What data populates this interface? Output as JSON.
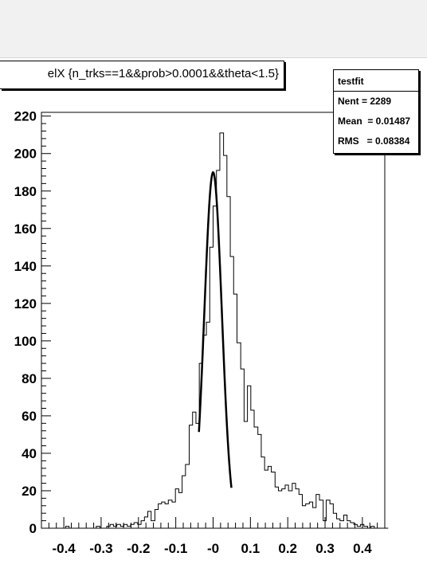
{
  "title": "elX {n_trks==1&&prob>0.0001&&theta<1.5}",
  "stats": {
    "name": "testfit",
    "entries_label": "Nent = 2289",
    "mean_label": "Mean  = 0.01487",
    "rms_label": "RMS   = 0.08384"
  },
  "colors": {
    "histogram": "#000000",
    "fit": "#000000",
    "background": "#ffffff",
    "top_band": "#f1f1f1"
  },
  "chart_data": {
    "type": "histogram",
    "title": "elX {n_trks==1&&prob>0.0001&&theta<1.5}",
    "xlabel": "",
    "ylabel": "",
    "xlim": [
      -0.46,
      0.46
    ],
    "ylim": [
      0,
      222
    ],
    "x_ticks": [
      -0.4,
      -0.3,
      -0.2,
      -0.1,
      0,
      0.1,
      0.2,
      0.3,
      0.4
    ],
    "x_tick_labels": [
      "-0.4",
      "-0.3",
      "-0.2",
      "-0.1",
      "-0",
      "0.1",
      "0.2",
      "0.3",
      "0.4"
    ],
    "y_ticks": [
      0,
      20,
      40,
      60,
      80,
      100,
      120,
      140,
      160,
      180,
      200,
      220
    ],
    "y_tick_labels": [
      "0",
      "20",
      "40",
      "60",
      "80",
      "100",
      "120",
      "140",
      "160",
      "180",
      "200",
      "220"
    ],
    "grid": false,
    "bin_width": 0.0092,
    "bins": [
      {
        "x": -0.46,
        "y": 0
      },
      {
        "x": -0.404,
        "y": 0
      },
      {
        "x": -0.395,
        "y": 1
      },
      {
        "x": -0.386,
        "y": 0
      },
      {
        "x": -0.322,
        "y": 0
      },
      {
        "x": -0.313,
        "y": 1
      },
      {
        "x": -0.303,
        "y": 0
      },
      {
        "x": -0.285,
        "y": 1
      },
      {
        "x": -0.276,
        "y": 2
      },
      {
        "x": -0.267,
        "y": 1
      },
      {
        "x": -0.258,
        "y": 2
      },
      {
        "x": -0.248,
        "y": 1
      },
      {
        "x": -0.239,
        "y": 2
      },
      {
        "x": -0.23,
        "y": 1
      },
      {
        "x": -0.221,
        "y": 2
      },
      {
        "x": -0.212,
        "y": 3
      },
      {
        "x": -0.202,
        "y": 2
      },
      {
        "x": -0.193,
        "y": 4
      },
      {
        "x": -0.184,
        "y": 6
      },
      {
        "x": -0.175,
        "y": 9
      },
      {
        "x": -0.166,
        "y": 4
      },
      {
        "x": -0.156,
        "y": 10
      },
      {
        "x": -0.147,
        "y": 13
      },
      {
        "x": -0.138,
        "y": 14
      },
      {
        "x": -0.129,
        "y": 13
      },
      {
        "x": -0.12,
        "y": 15
      },
      {
        "x": -0.11,
        "y": 14
      },
      {
        "x": -0.101,
        "y": 21
      },
      {
        "x": -0.092,
        "y": 19
      },
      {
        "x": -0.083,
        "y": 28
      },
      {
        "x": -0.074,
        "y": 34
      },
      {
        "x": -0.064,
        "y": 55
      },
      {
        "x": -0.055,
        "y": 62
      },
      {
        "x": -0.046,
        "y": 56
      },
      {
        "x": -0.037,
        "y": 88
      },
      {
        "x": -0.028,
        "y": 103
      },
      {
        "x": -0.018,
        "y": 110
      },
      {
        "x": -0.009,
        "y": 150
      },
      {
        "x": 0.0,
        "y": 172
      },
      {
        "x": 0.009,
        "y": 191
      },
      {
        "x": 0.018,
        "y": 211
      },
      {
        "x": 0.028,
        "y": 199
      },
      {
        "x": 0.037,
        "y": 177
      },
      {
        "x": 0.046,
        "y": 145
      },
      {
        "x": 0.055,
        "y": 125
      },
      {
        "x": 0.064,
        "y": 99
      },
      {
        "x": 0.074,
        "y": 85
      },
      {
        "x": 0.083,
        "y": 57
      },
      {
        "x": 0.092,
        "y": 76
      },
      {
        "x": 0.101,
        "y": 63
      },
      {
        "x": 0.11,
        "y": 54
      },
      {
        "x": 0.12,
        "y": 50
      },
      {
        "x": 0.129,
        "y": 38
      },
      {
        "x": 0.138,
        "y": 31
      },
      {
        "x": 0.147,
        "y": 33
      },
      {
        "x": 0.156,
        "y": 30
      },
      {
        "x": 0.166,
        "y": 22
      },
      {
        "x": 0.175,
        "y": 20
      },
      {
        "x": 0.184,
        "y": 21
      },
      {
        "x": 0.193,
        "y": 23
      },
      {
        "x": 0.202,
        "y": 20
      },
      {
        "x": 0.212,
        "y": 24
      },
      {
        "x": 0.221,
        "y": 21
      },
      {
        "x": 0.23,
        "y": 18
      },
      {
        "x": 0.239,
        "y": 12
      },
      {
        "x": 0.248,
        "y": 13
      },
      {
        "x": 0.258,
        "y": 14
      },
      {
        "x": 0.267,
        "y": 11
      },
      {
        "x": 0.276,
        "y": 18
      },
      {
        "x": 0.285,
        "y": 15
      },
      {
        "x": 0.295,
        "y": 4
      },
      {
        "x": 0.303,
        "y": 15
      },
      {
        "x": 0.313,
        "y": 13
      },
      {
        "x": 0.322,
        "y": 8
      },
      {
        "x": 0.331,
        "y": 5
      },
      {
        "x": 0.34,
        "y": 4
      },
      {
        "x": 0.35,
        "y": 7
      },
      {
        "x": 0.359,
        "y": 4
      },
      {
        "x": 0.368,
        "y": 3
      },
      {
        "x": 0.377,
        "y": 2
      },
      {
        "x": 0.386,
        "y": 1
      },
      {
        "x": 0.395,
        "y": 2
      },
      {
        "x": 0.404,
        "y": 1
      },
      {
        "x": 0.414,
        "y": 0
      },
      {
        "x": 0.423,
        "y": 1
      },
      {
        "x": 0.432,
        "y": 0
      },
      {
        "x": 0.46,
        "y": 0
      }
    ],
    "fit": {
      "type": "gaussian",
      "amplitude": 190,
      "mean": 0.0,
      "sigma": 0.0235,
      "x_range": [
        -0.038,
        0.049
      ]
    }
  }
}
